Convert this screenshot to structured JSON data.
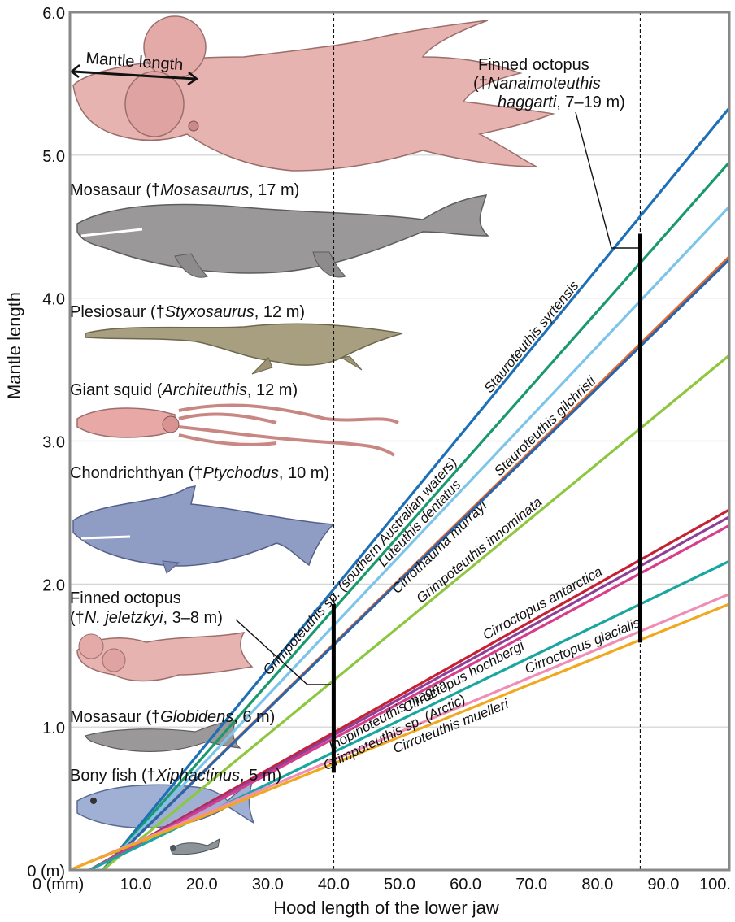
{
  "chart_data": {
    "type": "line",
    "xlabel": "Hood length of the lower jaw",
    "ylabel": "Mantle length",
    "xlim": [
      0,
      100
    ],
    "ylim": [
      0,
      6.0
    ],
    "x_ticks": [
      {
        "value": 0,
        "label": "0 (mm)"
      },
      {
        "value": 10,
        "label": "10.0"
      },
      {
        "value": 20,
        "label": "20.0"
      },
      {
        "value": 30,
        "label": "30.0"
      },
      {
        "value": 40,
        "label": "40.0"
      },
      {
        "value": 50,
        "label": "50.0"
      },
      {
        "value": 60,
        "label": "60.0"
      },
      {
        "value": 70,
        "label": "70.0"
      },
      {
        "value": 80,
        "label": "80.0"
      },
      {
        "value": 90,
        "label": "90.0"
      },
      {
        "value": 100,
        "label": "100."
      }
    ],
    "y_ticks": [
      {
        "value": 0,
        "label": "0 (m)"
      },
      {
        "value": 1,
        "label": "1.0"
      },
      {
        "value": 2,
        "label": "2.0"
      },
      {
        "value": 3,
        "label": "3.0"
      },
      {
        "value": 4,
        "label": "4.0"
      },
      {
        "value": 5,
        "label": "5.0"
      },
      {
        "value": 6,
        "label": "6.0"
      }
    ],
    "grid": "horizontal",
    "series": [
      {
        "name": "Stauroteuthis syrtensis",
        "color": "#1d6fb8",
        "x": [
          5,
          100
        ],
        "y": [
          0.0,
          5.33
        ]
      },
      {
        "name": "Grimpoteuthis sp. (southern Australian waters)",
        "color": "#1a9a6c",
        "x": [
          5,
          100
        ],
        "y": [
          0.0,
          4.95
        ]
      },
      {
        "name": "Luteuthis dentatus",
        "color": "#7cc4ea",
        "x": [
          5,
          100
        ],
        "y": [
          0.0,
          4.64
        ]
      },
      {
        "name": "Stauroteuthis gilchristi",
        "color": "#e8692e",
        "x": [
          5,
          100
        ],
        "y": [
          0.0,
          4.29
        ]
      },
      {
        "name": "Cirrothauma murrayi",
        "color": "#2b64a8",
        "x": [
          5,
          100
        ],
        "y": [
          0.0,
          4.27
        ]
      },
      {
        "name": "Grimpoteuthis innominata",
        "color": "#8dc63f",
        "x": [
          5,
          100
        ],
        "y": [
          0.0,
          3.6
        ]
      },
      {
        "name": "Cirroctopus antarctica",
        "color": "#c62033",
        "x": [
          3,
          100
        ],
        "y": [
          0.0,
          2.52
        ]
      },
      {
        "name": "Inopinoteuthis magna",
        "color": "#8e3f97",
        "x": [
          3,
          100
        ],
        "y": [
          0.0,
          2.47
        ]
      },
      {
        "name": "Cirroctopus hochbergi",
        "color": "#d63d8c",
        "x": [
          3,
          100
        ],
        "y": [
          0.0,
          2.41
        ]
      },
      {
        "name": "Grimpoteuthis sp. (Arctic)",
        "color": "#1aa6a0",
        "x": [
          3,
          100
        ],
        "y": [
          0.0,
          2.16
        ]
      },
      {
        "name": "Cirroctopus glacialis",
        "color": "#f08db6",
        "x": [
          0,
          100
        ],
        "y": [
          0.0,
          1.93
        ]
      },
      {
        "name": "Cirroteuthis muelleri",
        "color": "#f0a81e",
        "x": [
          0,
          100
        ],
        "y": [
          0.0,
          1.86
        ]
      }
    ],
    "reference_lines": [
      {
        "x": 40,
        "style": "dashed"
      },
      {
        "x": 86.5,
        "style": "dashed"
      }
    ],
    "ranges": [
      {
        "x": 40,
        "y_min": 0.68,
        "y_max": 1.86
      },
      {
        "x": 86.5,
        "y_min": 1.59,
        "y_max": 4.45
      }
    ],
    "annotations": [
      {
        "id": "finned_big",
        "lines": [
          "Finned octopus",
          "(†Nanaimoteuthis",
          "haggarti, 7–19 m)"
        ]
      },
      {
        "id": "mosasaurus",
        "text": "Mosasaur (†Mosasaurus, 17 m)"
      },
      {
        "id": "plesiosaur",
        "text": "Plesiosaur (†Styxosaurus, 12 m)"
      },
      {
        "id": "giant_squid",
        "text": "Giant squid (Architeuthis, 12 m)"
      },
      {
        "id": "chondrichthyan",
        "text": "Chondrichthyan (†Ptychodus, 10 m)"
      },
      {
        "id": "finned_small",
        "lines": [
          "Finned octopus",
          "(†N. jeletzkyi, 3–8 m)"
        ]
      },
      {
        "id": "globidens",
        "text": "Mosasaur (†Globidens, 6 m)"
      },
      {
        "id": "xiphactinus",
        "text": "Bony fish (†Xiphactinus, 5 m)"
      },
      {
        "id": "mantle_length_label",
        "text": "Mantle length"
      }
    ]
  },
  "labels": {
    "mantle_length": "Mantle length",
    "finned_big_1": "Finned octopus",
    "finned_big_2a": "(†",
    "finned_big_2b": "Nanaimoteuthis",
    "finned_big_3a": "haggarti",
    "finned_big_3b": ", 7–19 m)",
    "mosasaurus_a": "Mosasaur (†",
    "mosasaurus_b": "Mosasaurus",
    "mosasaurus_c": ", 17 m)",
    "plesiosaur_a": "Plesiosaur (†",
    "plesiosaur_b": "Styxosaurus",
    "plesiosaur_c": ", 12 m)",
    "squid_a": "Giant squid (",
    "squid_b": "Architeuthis",
    "squid_c": ", 12 m)",
    "chondro_a": "Chondrichthyan (†",
    "chondro_b": "Ptychodus",
    "chondro_c": ", 10 m)",
    "finned_small_1": "Finned octopus",
    "finned_small_2a": "(†",
    "finned_small_2b": "N. jeletzkyi",
    "finned_small_2c": ", 3–8 m)",
    "globidens_a": "Mosasaur (†",
    "globidens_b": "Globidens",
    "globidens_c": ", 6 m)",
    "xiphactinus_a": "Bony fish (†",
    "xiphactinus_b": "Xiphactinus",
    "xiphactinus_c": ", 5 m)"
  },
  "colors": {
    "frame": "#888888",
    "grid": "#cfcfcf",
    "octopus": "#e7b3b0",
    "mosasaur": "#9a9898",
    "plesiosaur": "#a89f80",
    "squid": "#e8a9a6",
    "shark": "#8f9cc4",
    "fish": "#9fb0d4"
  },
  "icons": [
    "octopus-illustration",
    "mosasaur-illustration",
    "plesiosaur-illustration",
    "squid-illustration",
    "shark-illustration",
    "bony-fish-illustration",
    "diver-illustration"
  ]
}
